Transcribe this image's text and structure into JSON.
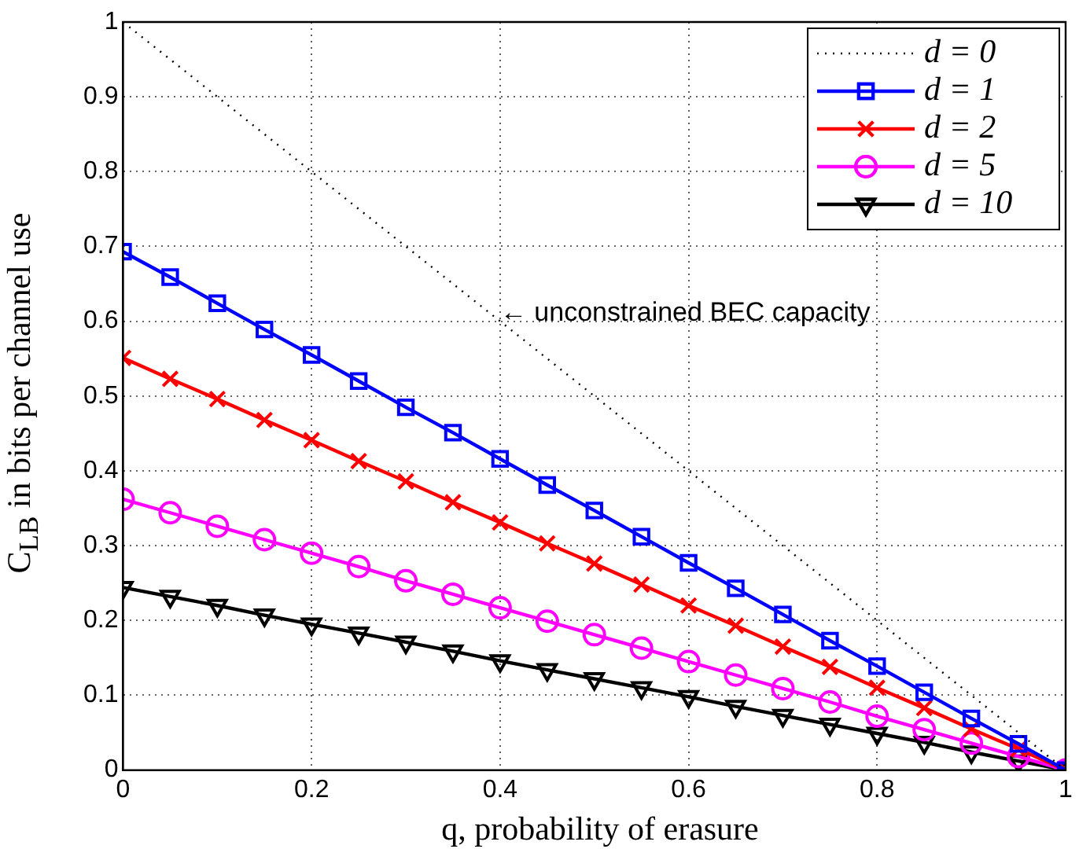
{
  "chart_data": {
    "type": "line",
    "xlabel": "q, probability of erasure",
    "ylabel": "C$_{LB}$ in bits per channel use",
    "x": [
      0,
      0.05,
      0.1,
      0.15,
      0.2,
      0.25,
      0.3,
      0.35,
      0.4,
      0.45,
      0.5,
      0.55,
      0.6,
      0.65,
      0.7,
      0.75,
      0.8,
      0.85,
      0.9,
      0.95,
      1
    ],
    "xlim": [
      0,
      1
    ],
    "xticks": [
      0,
      0.2,
      0.4,
      0.6,
      0.8,
      1
    ],
    "ylim": [
      0,
      1
    ],
    "yticks": [
      0,
      0.1,
      0.2,
      0.3,
      0.4,
      0.5,
      0.6,
      0.7,
      0.8,
      0.9,
      1
    ],
    "grid": true,
    "legend": "top right",
    "series": [
      {
        "name": "d = 0",
        "color": "#000000",
        "x": [
          0,
          1
        ],
        "values": [
          1,
          0
        ],
        "line_style": "dotted"
      },
      {
        "name": "d = 1",
        "color": "#0000ff",
        "marker": "square",
        "values": [
          0.693,
          0.659,
          0.624,
          0.589,
          0.555,
          0.52,
          0.485,
          0.451,
          0.416,
          0.381,
          0.347,
          0.312,
          0.277,
          0.243,
          0.208,
          0.173,
          0.139,
          0.104,
          0.069,
          0.035,
          0
        ]
      },
      {
        "name": "d = 2",
        "color": "#ff0000",
        "marker": "cross",
        "values": [
          0.551,
          0.523,
          0.496,
          0.468,
          0.441,
          0.413,
          0.386,
          0.358,
          0.331,
          0.303,
          0.276,
          0.248,
          0.22,
          0.193,
          0.165,
          0.138,
          0.11,
          0.083,
          0.055,
          0.028,
          0
        ]
      },
      {
        "name": "d = 5",
        "color": "#ff00ff",
        "marker": "circle",
        "values": [
          0.362,
          0.344,
          0.326,
          0.308,
          0.29,
          0.272,
          0.253,
          0.235,
          0.217,
          0.199,
          0.181,
          0.163,
          0.145,
          0.127,
          0.109,
          0.091,
          0.072,
          0.054,
          0.036,
          0.018,
          0
        ]
      },
      {
        "name": "d = 10",
        "color": "#000000",
        "marker": "triangle",
        "values": [
          0.244,
          0.232,
          0.22,
          0.207,
          0.195,
          0.183,
          0.171,
          0.159,
          0.146,
          0.134,
          0.122,
          0.11,
          0.098,
          0.085,
          0.073,
          0.061,
          0.049,
          0.037,
          0.024,
          0.012,
          0
        ]
      }
    ],
    "annotations": [
      {
        "text": "← unconstrained BEC capacity",
        "x": 0.4,
        "y": 0.61
      }
    ]
  }
}
